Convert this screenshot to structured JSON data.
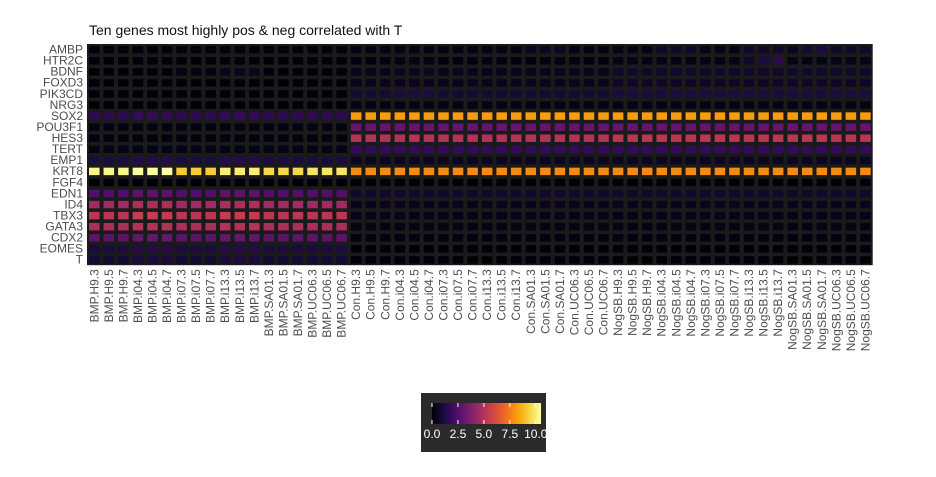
{
  "chart_data": {
    "type": "heatmap",
    "title": "Ten genes most highly pos & neg correlated with T",
    "rows": [
      "AMBP",
      "HTR2C",
      "BDNF",
      "FOXD3",
      "PIK3CD",
      "NRG3",
      "SOX2",
      "POU3F1",
      "HES3",
      "TERT",
      "EMP1",
      "KRT8",
      "FGF4",
      "EDN1",
      "ID4",
      "TBX3",
      "GATA3",
      "CDX2",
      "EOMES",
      "T"
    ],
    "columns": [
      "BMP.H9.3",
      "BMP.H9.5",
      "BMP.H9.7",
      "BMP.i04.3",
      "BMP.i04.5",
      "BMP.i04.7",
      "BMP.i07.3",
      "BMP.i07.5",
      "BMP.i07.7",
      "BMP.i13.3",
      "BMP.i13.5",
      "BMP.i13.7",
      "BMP.SA01.3",
      "BMP.SA01.5",
      "BMP.SA01.7",
      "BMP.UC06.3",
      "BMP.UC06.5",
      "BMP.UC06.7",
      "Con.H9.3",
      "Con.H9.5",
      "Con.H9.7",
      "Con.i04.3",
      "Con.i04.5",
      "Con.i04.7",
      "Con.i07.3",
      "Con.i07.5",
      "Con.i07.7",
      "Con.i13.3",
      "Con.i13.5",
      "Con.i13.7",
      "Con.SA01.3",
      "Con.SA01.5",
      "Con.SA01.7",
      "Con.UC06.3",
      "Con.UC06.5",
      "Con.UC06.7",
      "NogSB.H9.3",
      "NogSB.H9.5",
      "NogSB.H9.7",
      "NogSB.i04.3",
      "NogSB.i04.5",
      "NogSB.i04.7",
      "NogSB.i07.3",
      "NogSB.i07.5",
      "NogSB.i07.7",
      "NogSB.i13.3",
      "NogSB.i13.5",
      "NogSB.i13.7",
      "NogSB.SA01.3",
      "NogSB.SA01.5",
      "NogSB.SA01.7",
      "NogSB.UC06.3",
      "NogSB.UC06.5",
      "NogSB.UC06.7"
    ],
    "values": [
      [
        0.2,
        0.2,
        0.2,
        0.2,
        0.2,
        0.2,
        0.2,
        0.2,
        0.2,
        0.2,
        0.2,
        0.2,
        0.2,
        0.2,
        0.2,
        0.2,
        0.2,
        0.2,
        0.3,
        0.3,
        0.3,
        0.3,
        0.3,
        0.3,
        0.3,
        0.3,
        0.3,
        0.3,
        0.3,
        0.3,
        0.6,
        0.6,
        0.6,
        0.3,
        0.3,
        0.3,
        0.4,
        0.4,
        0.4,
        0.8,
        0.8,
        0.8,
        0.4,
        0.4,
        0.4,
        0.8,
        0.8,
        0.8,
        0.6,
        1.0,
        1.2,
        0.8,
        0.8,
        0.8
      ],
      [
        0.1,
        0.1,
        0.1,
        0.1,
        0.1,
        0.1,
        0.1,
        0.1,
        0.1,
        0.1,
        0.1,
        0.1,
        0.1,
        0.1,
        0.1,
        0.1,
        0.1,
        0.1,
        0.2,
        0.2,
        0.2,
        0.3,
        0.3,
        0.3,
        0.2,
        0.2,
        0.2,
        0.2,
        0.2,
        0.2,
        0.2,
        0.2,
        0.2,
        0.2,
        0.2,
        0.2,
        0.3,
        0.3,
        0.3,
        0.3,
        0.3,
        0.3,
        0.3,
        0.3,
        0.3,
        0.8,
        1.2,
        1.6,
        0.3,
        0.3,
        0.3,
        0.4,
        0.4,
        0.4
      ],
      [
        0.1,
        0.1,
        0.1,
        0.1,
        0.1,
        0.1,
        0.3,
        0.3,
        0.3,
        0.5,
        0.5,
        0.5,
        0.1,
        0.1,
        0.1,
        0.1,
        0.1,
        0.1,
        0.5,
        0.5,
        0.5,
        0.6,
        0.6,
        0.6,
        0.5,
        0.5,
        0.5,
        0.5,
        0.5,
        0.5,
        0.5,
        0.5,
        0.5,
        0.5,
        0.5,
        0.5,
        0.8,
        0.8,
        0.8,
        0.8,
        0.8,
        0.8,
        0.8,
        0.8,
        0.8,
        0.8,
        0.8,
        0.8,
        0.8,
        0.8,
        0.8,
        0.8,
        0.8,
        0.8
      ],
      [
        0.1,
        0.1,
        0.1,
        0.1,
        0.1,
        0.1,
        0.1,
        0.1,
        0.1,
        0.1,
        0.1,
        0.1,
        0.1,
        0.1,
        0.1,
        0.1,
        0.1,
        0.1,
        0.5,
        0.5,
        0.5,
        0.5,
        0.5,
        0.5,
        0.5,
        0.5,
        0.5,
        0.5,
        0.5,
        0.5,
        0.5,
        0.5,
        0.5,
        0.5,
        0.5,
        0.5,
        0.7,
        0.7,
        0.7,
        0.7,
        0.7,
        0.7,
        0.7,
        0.7,
        0.7,
        0.7,
        0.7,
        0.7,
        0.7,
        0.7,
        0.7,
        0.7,
        0.7,
        0.7
      ],
      [
        0.1,
        0.1,
        0.1,
        0.1,
        0.1,
        0.1,
        0.1,
        0.1,
        0.1,
        0.1,
        0.1,
        0.1,
        0.1,
        0.1,
        0.1,
        0.1,
        0.1,
        0.1,
        1.0,
        1.0,
        1.0,
        1.2,
        1.2,
        1.2,
        1.0,
        1.0,
        1.0,
        1.0,
        1.0,
        1.0,
        1.0,
        1.0,
        1.0,
        1.0,
        1.0,
        1.0,
        1.2,
        1.2,
        1.2,
        1.2,
        1.2,
        1.2,
        1.2,
        1.2,
        1.2,
        1.2,
        1.2,
        1.2,
        1.2,
        1.2,
        1.2,
        1.2,
        1.2,
        1.2
      ],
      [
        0.1,
        0.1,
        0.1,
        0.1,
        0.1,
        0.1,
        0.1,
        0.1,
        0.1,
        0.1,
        0.1,
        0.1,
        0.1,
        0.1,
        0.1,
        0.1,
        0.1,
        0.1,
        0.3,
        0.3,
        0.3,
        0.3,
        0.3,
        0.3,
        0.3,
        0.3,
        0.3,
        0.3,
        0.3,
        0.3,
        0.3,
        0.3,
        0.3,
        0.3,
        0.3,
        0.3,
        0.3,
        0.3,
        0.3,
        0.3,
        0.3,
        0.3,
        0.3,
        0.3,
        0.3,
        0.3,
        0.3,
        0.3,
        0.3,
        0.3,
        0.3,
        0.3,
        0.3,
        0.3
      ],
      [
        1.6,
        1.6,
        1.6,
        1.8,
        1.8,
        1.8,
        1.6,
        1.6,
        1.6,
        1.8,
        1.8,
        1.8,
        1.6,
        1.6,
        1.6,
        1.6,
        1.6,
        1.6,
        8.2,
        8.2,
        8.2,
        8.2,
        8.2,
        8.2,
        8.2,
        8.2,
        8.2,
        8.2,
        8.2,
        8.2,
        8.2,
        8.2,
        8.2,
        8.2,
        8.2,
        8.2,
        8.2,
        8.2,
        8.2,
        8.2,
        8.2,
        8.2,
        8.2,
        8.2,
        8.2,
        8.2,
        8.2,
        8.2,
        8.2,
        8.2,
        8.2,
        8.2,
        8.2,
        8.2
      ],
      [
        0.3,
        0.3,
        0.3,
        0.3,
        0.3,
        0.3,
        0.3,
        0.3,
        0.3,
        0.3,
        0.3,
        0.3,
        0.3,
        0.3,
        0.3,
        0.3,
        0.3,
        0.3,
        3.0,
        3.0,
        3.0,
        3.0,
        3.0,
        3.0,
        3.0,
        3.0,
        3.0,
        3.0,
        3.0,
        3.0,
        3.0,
        3.0,
        3.0,
        3.0,
        3.0,
        3.0,
        3.0,
        3.0,
        3.0,
        3.0,
        3.0,
        3.0,
        3.0,
        3.0,
        3.0,
        3.0,
        3.0,
        3.0,
        3.0,
        3.0,
        3.0,
        3.0,
        3.0,
        3.0
      ],
      [
        0.2,
        0.2,
        0.2,
        0.2,
        0.2,
        0.2,
        0.2,
        0.2,
        0.2,
        0.2,
        0.2,
        0.2,
        0.2,
        0.2,
        0.2,
        0.2,
        0.2,
        0.2,
        5.0,
        5.0,
        5.0,
        5.0,
        5.0,
        5.0,
        5.0,
        5.0,
        5.0,
        5.0,
        5.0,
        5.0,
        5.0,
        5.0,
        5.0,
        5.0,
        5.0,
        5.0,
        5.2,
        5.2,
        5.2,
        5.2,
        5.2,
        5.2,
        5.2,
        5.2,
        5.2,
        5.2,
        5.2,
        5.2,
        5.2,
        5.2,
        5.2,
        5.2,
        5.2,
        5.2
      ],
      [
        0.3,
        0.3,
        0.3,
        0.3,
        0.3,
        0.3,
        0.3,
        0.3,
        0.3,
        0.3,
        0.3,
        0.3,
        0.3,
        0.3,
        0.3,
        0.3,
        0.3,
        0.3,
        1.8,
        1.8,
        1.8,
        1.8,
        1.8,
        1.8,
        1.8,
        1.8,
        1.8,
        1.8,
        1.8,
        1.8,
        1.8,
        1.8,
        1.8,
        1.8,
        1.8,
        1.8,
        1.8,
        1.8,
        1.8,
        1.8,
        1.8,
        1.8,
        1.8,
        1.8,
        1.8,
        1.8,
        1.8,
        1.8,
        1.8,
        1.8,
        1.8,
        1.8,
        1.8,
        1.8
      ],
      [
        1.2,
        1.2,
        1.2,
        1.4,
        1.4,
        1.4,
        1.2,
        1.2,
        1.2,
        1.4,
        1.4,
        1.4,
        1.2,
        1.2,
        1.2,
        1.2,
        1.2,
        1.2,
        0.6,
        0.6,
        0.6,
        0.6,
        0.6,
        0.6,
        0.6,
        0.6,
        0.6,
        0.6,
        0.6,
        0.6,
        0.6,
        0.6,
        0.6,
        0.6,
        0.6,
        0.6,
        0.6,
        0.6,
        0.6,
        0.6,
        0.6,
        0.6,
        0.6,
        0.6,
        0.6,
        0.6,
        0.6,
        0.6,
        0.6,
        0.6,
        0.6,
        0.6,
        0.6,
        0.6
      ],
      [
        10.2,
        10.2,
        10.2,
        10.5,
        10.5,
        10.5,
        9.2,
        9.2,
        9.2,
        10.0,
        10.0,
        10.0,
        9.5,
        9.5,
        9.5,
        9.8,
        9.8,
        9.8,
        7.8,
        7.8,
        7.8,
        7.8,
        7.8,
        7.8,
        7.8,
        7.8,
        7.8,
        7.8,
        7.8,
        7.8,
        7.8,
        7.8,
        7.8,
        7.8,
        7.8,
        7.8,
        7.8,
        7.8,
        7.8,
        7.8,
        7.8,
        7.8,
        7.8,
        7.8,
        7.8,
        7.8,
        7.8,
        7.8,
        7.8,
        7.8,
        7.8,
        7.8,
        7.8,
        7.8
      ],
      [
        0.1,
        0.1,
        0.1,
        0.1,
        0.1,
        0.1,
        0.1,
        0.1,
        0.1,
        0.1,
        0.1,
        0.1,
        0.1,
        0.1,
        0.1,
        0.1,
        0.1,
        0.1,
        0.1,
        0.1,
        0.1,
        0.1,
        0.1,
        0.1,
        0.1,
        0.1,
        0.1,
        0.1,
        0.1,
        0.1,
        0.1,
        0.1,
        0.1,
        0.1,
        0.1,
        0.1,
        0.1,
        0.1,
        0.1,
        0.1,
        0.1,
        0.1,
        0.1,
        0.1,
        0.1,
        0.1,
        0.1,
        0.1,
        0.1,
        0.1,
        0.1,
        0.1,
        0.1,
        0.1
      ],
      [
        2.5,
        2.5,
        2.5,
        2.8,
        2.8,
        2.8,
        2.5,
        2.5,
        2.5,
        2.8,
        2.8,
        2.8,
        2.5,
        2.5,
        2.5,
        2.5,
        2.5,
        2.5,
        0.8,
        0.8,
        0.8,
        0.8,
        0.8,
        0.8,
        0.8,
        0.8,
        0.8,
        0.8,
        0.8,
        0.8,
        0.8,
        0.8,
        0.8,
        0.8,
        0.8,
        0.8,
        0.8,
        0.8,
        0.8,
        0.8,
        0.8,
        0.8,
        0.8,
        0.8,
        0.8,
        0.8,
        0.8,
        0.8,
        0.8,
        0.8,
        0.8,
        0.8,
        0.8,
        0.8
      ],
      [
        4.5,
        4.5,
        4.5,
        4.8,
        4.8,
        4.8,
        4.5,
        4.5,
        4.5,
        4.8,
        4.8,
        4.8,
        4.5,
        4.5,
        4.5,
        4.5,
        4.5,
        4.5,
        0.5,
        0.5,
        0.5,
        0.5,
        0.5,
        0.5,
        0.5,
        0.5,
        0.5,
        0.5,
        0.5,
        0.5,
        0.5,
        0.5,
        0.5,
        0.5,
        0.5,
        0.5,
        0.5,
        0.5,
        0.5,
        0.5,
        0.5,
        0.5,
        0.5,
        0.5,
        0.5,
        0.5,
        0.5,
        0.5,
        0.5,
        0.5,
        0.5,
        0.5,
        0.5,
        0.5
      ],
      [
        5.2,
        5.2,
        5.2,
        5.5,
        5.5,
        5.5,
        5.2,
        5.2,
        5.2,
        5.5,
        5.5,
        5.5,
        5.2,
        5.2,
        5.2,
        5.2,
        5.2,
        5.2,
        0.4,
        0.4,
        0.4,
        0.4,
        0.4,
        0.4,
        0.4,
        0.4,
        0.4,
        0.4,
        0.4,
        0.4,
        0.4,
        0.4,
        0.4,
        0.4,
        0.4,
        0.4,
        0.4,
        0.4,
        0.4,
        0.4,
        0.4,
        0.4,
        0.4,
        0.4,
        0.4,
        0.4,
        0.4,
        0.4,
        0.4,
        0.4,
        0.4,
        0.4,
        0.4,
        0.4
      ],
      [
        4.8,
        4.8,
        4.8,
        5.0,
        5.0,
        5.0,
        4.8,
        4.8,
        4.8,
        5.0,
        5.0,
        5.0,
        4.8,
        4.8,
        4.8,
        4.8,
        4.8,
        4.8,
        0.3,
        0.3,
        0.3,
        0.3,
        0.3,
        0.3,
        0.3,
        0.3,
        0.3,
        0.3,
        0.3,
        0.3,
        0.3,
        0.3,
        0.3,
        0.3,
        0.3,
        0.3,
        0.3,
        0.3,
        0.3,
        0.3,
        0.3,
        0.3,
        0.3,
        0.3,
        0.3,
        0.3,
        0.3,
        0.3,
        0.3,
        0.3,
        0.3,
        0.3,
        0.3,
        0.3
      ],
      [
        2.8,
        2.8,
        2.8,
        3.0,
        3.0,
        3.0,
        2.8,
        2.8,
        2.8,
        3.0,
        3.0,
        3.0,
        2.8,
        2.8,
        2.8,
        2.8,
        2.8,
        2.8,
        0.2,
        0.2,
        0.2,
        0.2,
        0.2,
        0.2,
        0.2,
        0.2,
        0.2,
        0.2,
        0.2,
        0.2,
        0.2,
        0.2,
        0.2,
        0.2,
        0.2,
        0.2,
        0.2,
        0.2,
        0.2,
        0.2,
        0.2,
        0.2,
        0.2,
        0.2,
        0.2,
        0.2,
        0.2,
        0.2,
        0.2,
        0.2,
        0.2,
        0.2,
        0.2,
        0.2
      ],
      [
        1.2,
        1.2,
        1.2,
        1.4,
        1.4,
        1.4,
        1.2,
        1.2,
        1.2,
        1.4,
        1.4,
        1.4,
        1.2,
        1.2,
        1.2,
        1.2,
        1.2,
        1.2,
        0.1,
        0.1,
        0.1,
        0.1,
        0.1,
        0.1,
        0.1,
        0.1,
        0.1,
        0.1,
        0.1,
        0.1,
        0.1,
        0.1,
        0.1,
        0.1,
        0.1,
        0.1,
        0.1,
        0.1,
        0.1,
        0.1,
        0.1,
        0.1,
        0.1,
        0.1,
        0.1,
        0.1,
        0.1,
        0.1,
        0.1,
        0.1,
        0.1,
        0.1,
        0.1,
        0.1
      ],
      [
        1.0,
        1.0,
        1.0,
        1.2,
        1.2,
        1.2,
        1.0,
        1.0,
        1.0,
        1.2,
        1.2,
        1.2,
        1.0,
        1.0,
        1.0,
        1.0,
        1.0,
        1.0,
        0.1,
        0.1,
        0.1,
        0.1,
        0.1,
        0.1,
        0.1,
        0.1,
        0.1,
        0.1,
        0.1,
        0.1,
        0.1,
        0.1,
        0.1,
        0.1,
        0.1,
        0.1,
        0.1,
        0.1,
        0.1,
        0.1,
        0.1,
        0.1,
        0.1,
        0.1,
        0.1,
        0.1,
        0.1,
        0.1,
        0.1,
        0.1,
        0.1,
        0.1,
        0.1,
        0.1
      ]
    ],
    "colorscale": "inferno",
    "color_range": [
      0,
      10.5
    ],
    "legend": {
      "position": "bottom",
      "ticks": [
        "0.0",
        "2.5",
        "5.0",
        "7.5",
        "10.0"
      ],
      "tick_values": [
        0,
        2.5,
        5,
        7.5,
        10
      ],
      "background": "#2b2b2b"
    },
    "panel_background": "#1a1a1a",
    "grid": false
  }
}
